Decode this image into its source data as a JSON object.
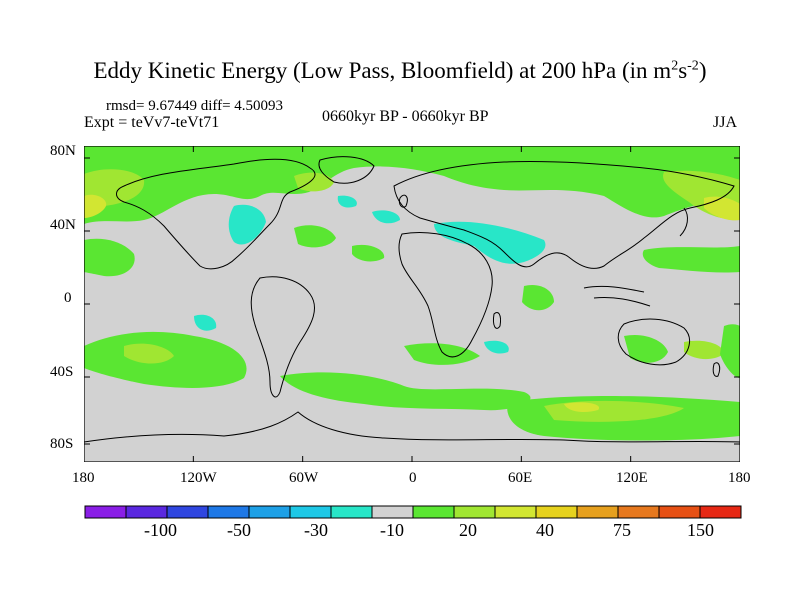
{
  "title": {
    "main": "Eddy Kinetic Energy (Low Pass, Bloomfield) at 200 hPa (in m",
    "sup1": "2",
    "mid": "s",
    "sup2": "-2",
    "end": ")"
  },
  "stats": "rmsd= 9.67449 diff= 4.50093",
  "expt": "Expt = teVv7-teVt71",
  "period": "0660kyr BP - 0660kyr BP",
  "season": "JJA",
  "lat_ticks": [
    "80N",
    "40N",
    "0",
    "40S",
    "80S"
  ],
  "lon_ticks": [
    "180",
    "120W",
    "60W",
    "0",
    "60E",
    "120E",
    "180"
  ],
  "colorbar": {
    "colors": [
      "#8a1ee6",
      "#5a28e0",
      "#2f46e0",
      "#1e78e6",
      "#1ea0e6",
      "#1ec8e6",
      "#28e6c8",
      "#d2d2d2",
      "#5ae632",
      "#a0e632",
      "#d2e632",
      "#e6d21e",
      "#e6a01e",
      "#e6781e",
      "#e65014",
      "#e62814"
    ],
    "labels": [
      "-100",
      "-50",
      "-30",
      "-10",
      "20",
      "40",
      "75",
      "150"
    ]
  },
  "palette": {
    "land_bg": "#d2d2d2",
    "green": "#5ae632",
    "lime": "#a0e632",
    "yellow_green": "#d2e632",
    "cyan": "#28e6c8"
  }
}
